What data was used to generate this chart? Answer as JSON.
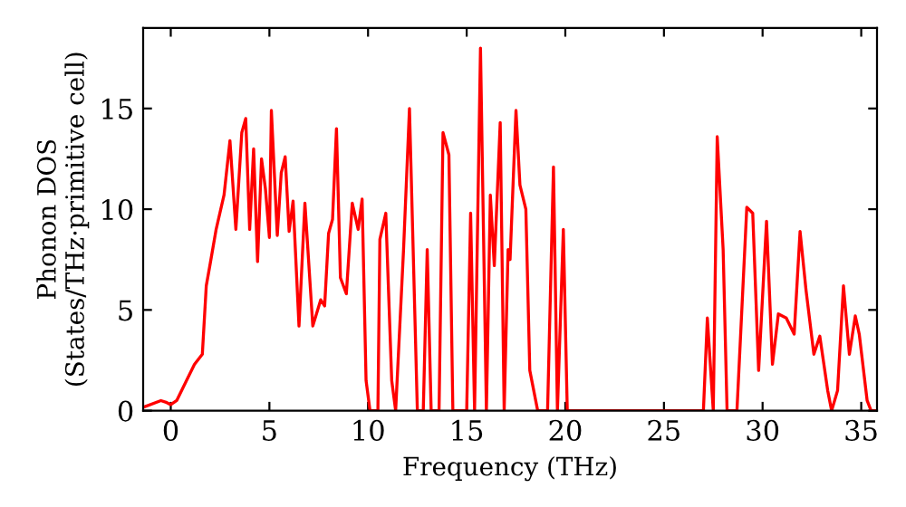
{
  "chart_data": {
    "type": "line",
    "xlabel": "Frequency (THz)",
    "ylabel": "Phonon DOS\n(States/THz·primitive cell)",
    "xlim": [
      -1.4,
      35.8
    ],
    "ylim": [
      0,
      19
    ],
    "xticks": [
      0,
      5,
      10,
      15,
      20,
      25,
      30,
      35
    ],
    "yticks": [
      0,
      5,
      10,
      15
    ],
    "grid": false,
    "legend": false,
    "marker": "none",
    "line_style": "solid",
    "series": [
      {
        "color": "#ff0000",
        "x": [
          -1.3,
          -0.5,
          -0.2,
          0,
          0.3,
          0.8,
          1.2,
          1.6,
          1.8,
          2.0,
          2.3,
          2.7,
          3.0,
          3.3,
          3.6,
          3.8,
          4.0,
          4.2,
          4.4,
          4.6,
          4.8,
          5.0,
          5.1,
          5.4,
          5.6,
          5.8,
          6.0,
          6.2,
          6.5,
          6.8,
          7.2,
          7.6,
          7.8,
          8.0,
          8.2,
          8.4,
          8.6,
          8.9,
          9.2,
          9.5,
          9.7,
          9.9,
          10.1,
          10.5,
          10.6,
          10.9,
          11.2,
          11.4,
          11.8,
          12.1,
          12.5,
          12.8,
          13.0,
          13.2,
          13.6,
          13.8,
          14.1,
          14.3,
          15.0,
          15.2,
          15.4,
          15.7,
          16.0,
          16.2,
          16.4,
          16.7,
          16.9,
          17.1,
          17.2,
          17.5,
          17.7,
          18.0,
          18.2,
          18.6,
          19.1,
          19.4,
          19.6,
          19.9,
          20.1,
          27.0,
          27.2,
          27.5,
          27.7,
          28.0,
          28.2,
          28.7,
          29.2,
          29.5,
          29.8,
          30.2,
          30.5,
          30.8,
          31.2,
          31.6,
          31.9,
          32.2,
          32.6,
          32.9,
          33.3,
          33.5,
          33.8,
          34.1,
          34.4,
          34.7,
          34.9,
          35.3,
          35.5,
          35.8
        ],
        "values": [
          0.2,
          0.5,
          0.4,
          0.3,
          0.5,
          1.5,
          2.3,
          2.8,
          6.2,
          7.3,
          9.0,
          10.7,
          13.4,
          9.0,
          13.8,
          14.5,
          9.0,
          13.0,
          7.4,
          12.5,
          11.0,
          8.6,
          14.9,
          8.7,
          11.8,
          12.6,
          8.9,
          10.4,
          4.2,
          10.3,
          4.2,
          5.5,
          5.2,
          8.8,
          9.5,
          14.0,
          6.6,
          5.8,
          10.3,
          9.0,
          10.5,
          1.5,
          0,
          0,
          8.5,
          9.8,
          1.5,
          0,
          8.0,
          15.0,
          0,
          0,
          8.0,
          0,
          0,
          13.8,
          12.7,
          0,
          0,
          9.8,
          0,
          18.0,
          0,
          10.7,
          7.2,
          14.3,
          0,
          8.0,
          7.5,
          14.9,
          11.2,
          10.0,
          2.0,
          0,
          0,
          12.1,
          0,
          9.0,
          0,
          0,
          4.6,
          0,
          13.6,
          8.0,
          0,
          0,
          10.1,
          9.8,
          2.0,
          9.4,
          2.3,
          4.8,
          4.6,
          3.8,
          8.9,
          6.0,
          2.8,
          3.7,
          1.0,
          0,
          1.0,
          6.2,
          2.8,
          4.7,
          3.8,
          0.5,
          0,
          0
        ]
      }
    ]
  }
}
